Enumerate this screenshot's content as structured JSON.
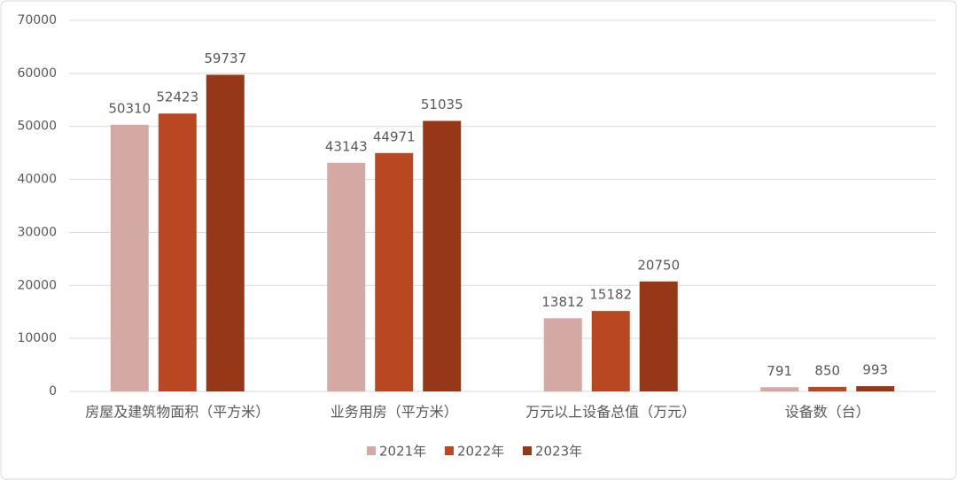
{
  "chart_data": {
    "type": "bar",
    "categories": [
      "房屋及建筑物面积（平方米）",
      "业务用房（平方米）",
      "万元以上设备总值（万元）",
      "设备数（台）"
    ],
    "series": [
      {
        "name": "2021年",
        "color": "#d5a9a3",
        "values": [
          50310,
          43143,
          13812,
          791
        ]
      },
      {
        "name": "2022年",
        "color": "#b94822",
        "values": [
          52423,
          44971,
          15182,
          850
        ]
      },
      {
        "name": "2023年",
        "color": "#963818",
        "values": [
          59737,
          51035,
          20750,
          993
        ]
      }
    ],
    "ylim": [
      0,
      70000
    ],
    "yticks": [
      0,
      10000,
      20000,
      30000,
      40000,
      50000,
      60000,
      70000
    ],
    "grid": true,
    "legend": "bottom"
  }
}
